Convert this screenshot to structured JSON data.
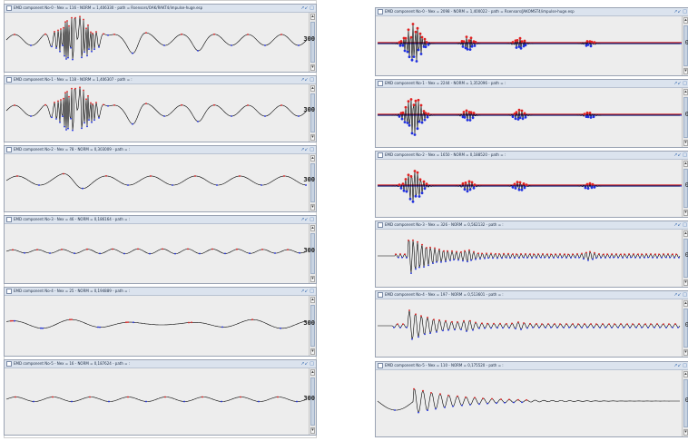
{
  "left_panels": [
    {
      "title": "EMD component No-0 - Nex = 116 - NORM = 1,406330 - path = Rsensors/OAK/RAKT4/impulse-huge.esp",
      "value": "300"
    },
    {
      "title": "EMD component No-1 - Nex = 118 - NORM = 1,406307 - path = :",
      "value": "300"
    },
    {
      "title": "EMD component No-2 - Nex = 78 - NORM = 0,303009 - path = :",
      "value": "300"
    },
    {
      "title": "EMD component No-3 - Nex = 46 - NORM = 0,186164 - path = :",
      "value": "300"
    },
    {
      "title": "EMD component No-4 - Nex = 25 - NORM = 0,194889 - path = :",
      "value": "300"
    },
    {
      "title": "EMD component No-5 - Nex = 16 - NORM = 0,187624 - path = :",
      "value": "300"
    }
  ],
  "right_panels": [
    {
      "title": "EMD component No-0 - Nex = 2098 - NORM = 1,400022 - path = Rsensors/JAKOMST4/impulse-huge.esp",
      "value": "0"
    },
    {
      "title": "EMD component No-1 - Nex = 2244 - NORM = 1,352096 - path = :",
      "value": "0"
    },
    {
      "title": "EMD component No-2 - Nex = 1650 - NORM = 0,188520 - path = :",
      "value": "0"
    },
    {
      "title": "EMD component No-3 - Nex = 326 - NORM = 0,562132 - path = :",
      "value": "0"
    },
    {
      "title": "EMD component No-4 - Nex = 197 - NORM = 0,513601 - path = :",
      "value": "0"
    },
    {
      "title": "EMD component No-5 - Nex = 110 - NORM = 0,175520 - path = :",
      "value": "0"
    }
  ],
  "colors": {
    "trace": "#000000",
    "peak_max": "#e02020",
    "peak_min": "#2030e0",
    "zero_line": "#d01010"
  },
  "icons": {
    "window": "window-icon",
    "controls": "resize-icons"
  }
}
